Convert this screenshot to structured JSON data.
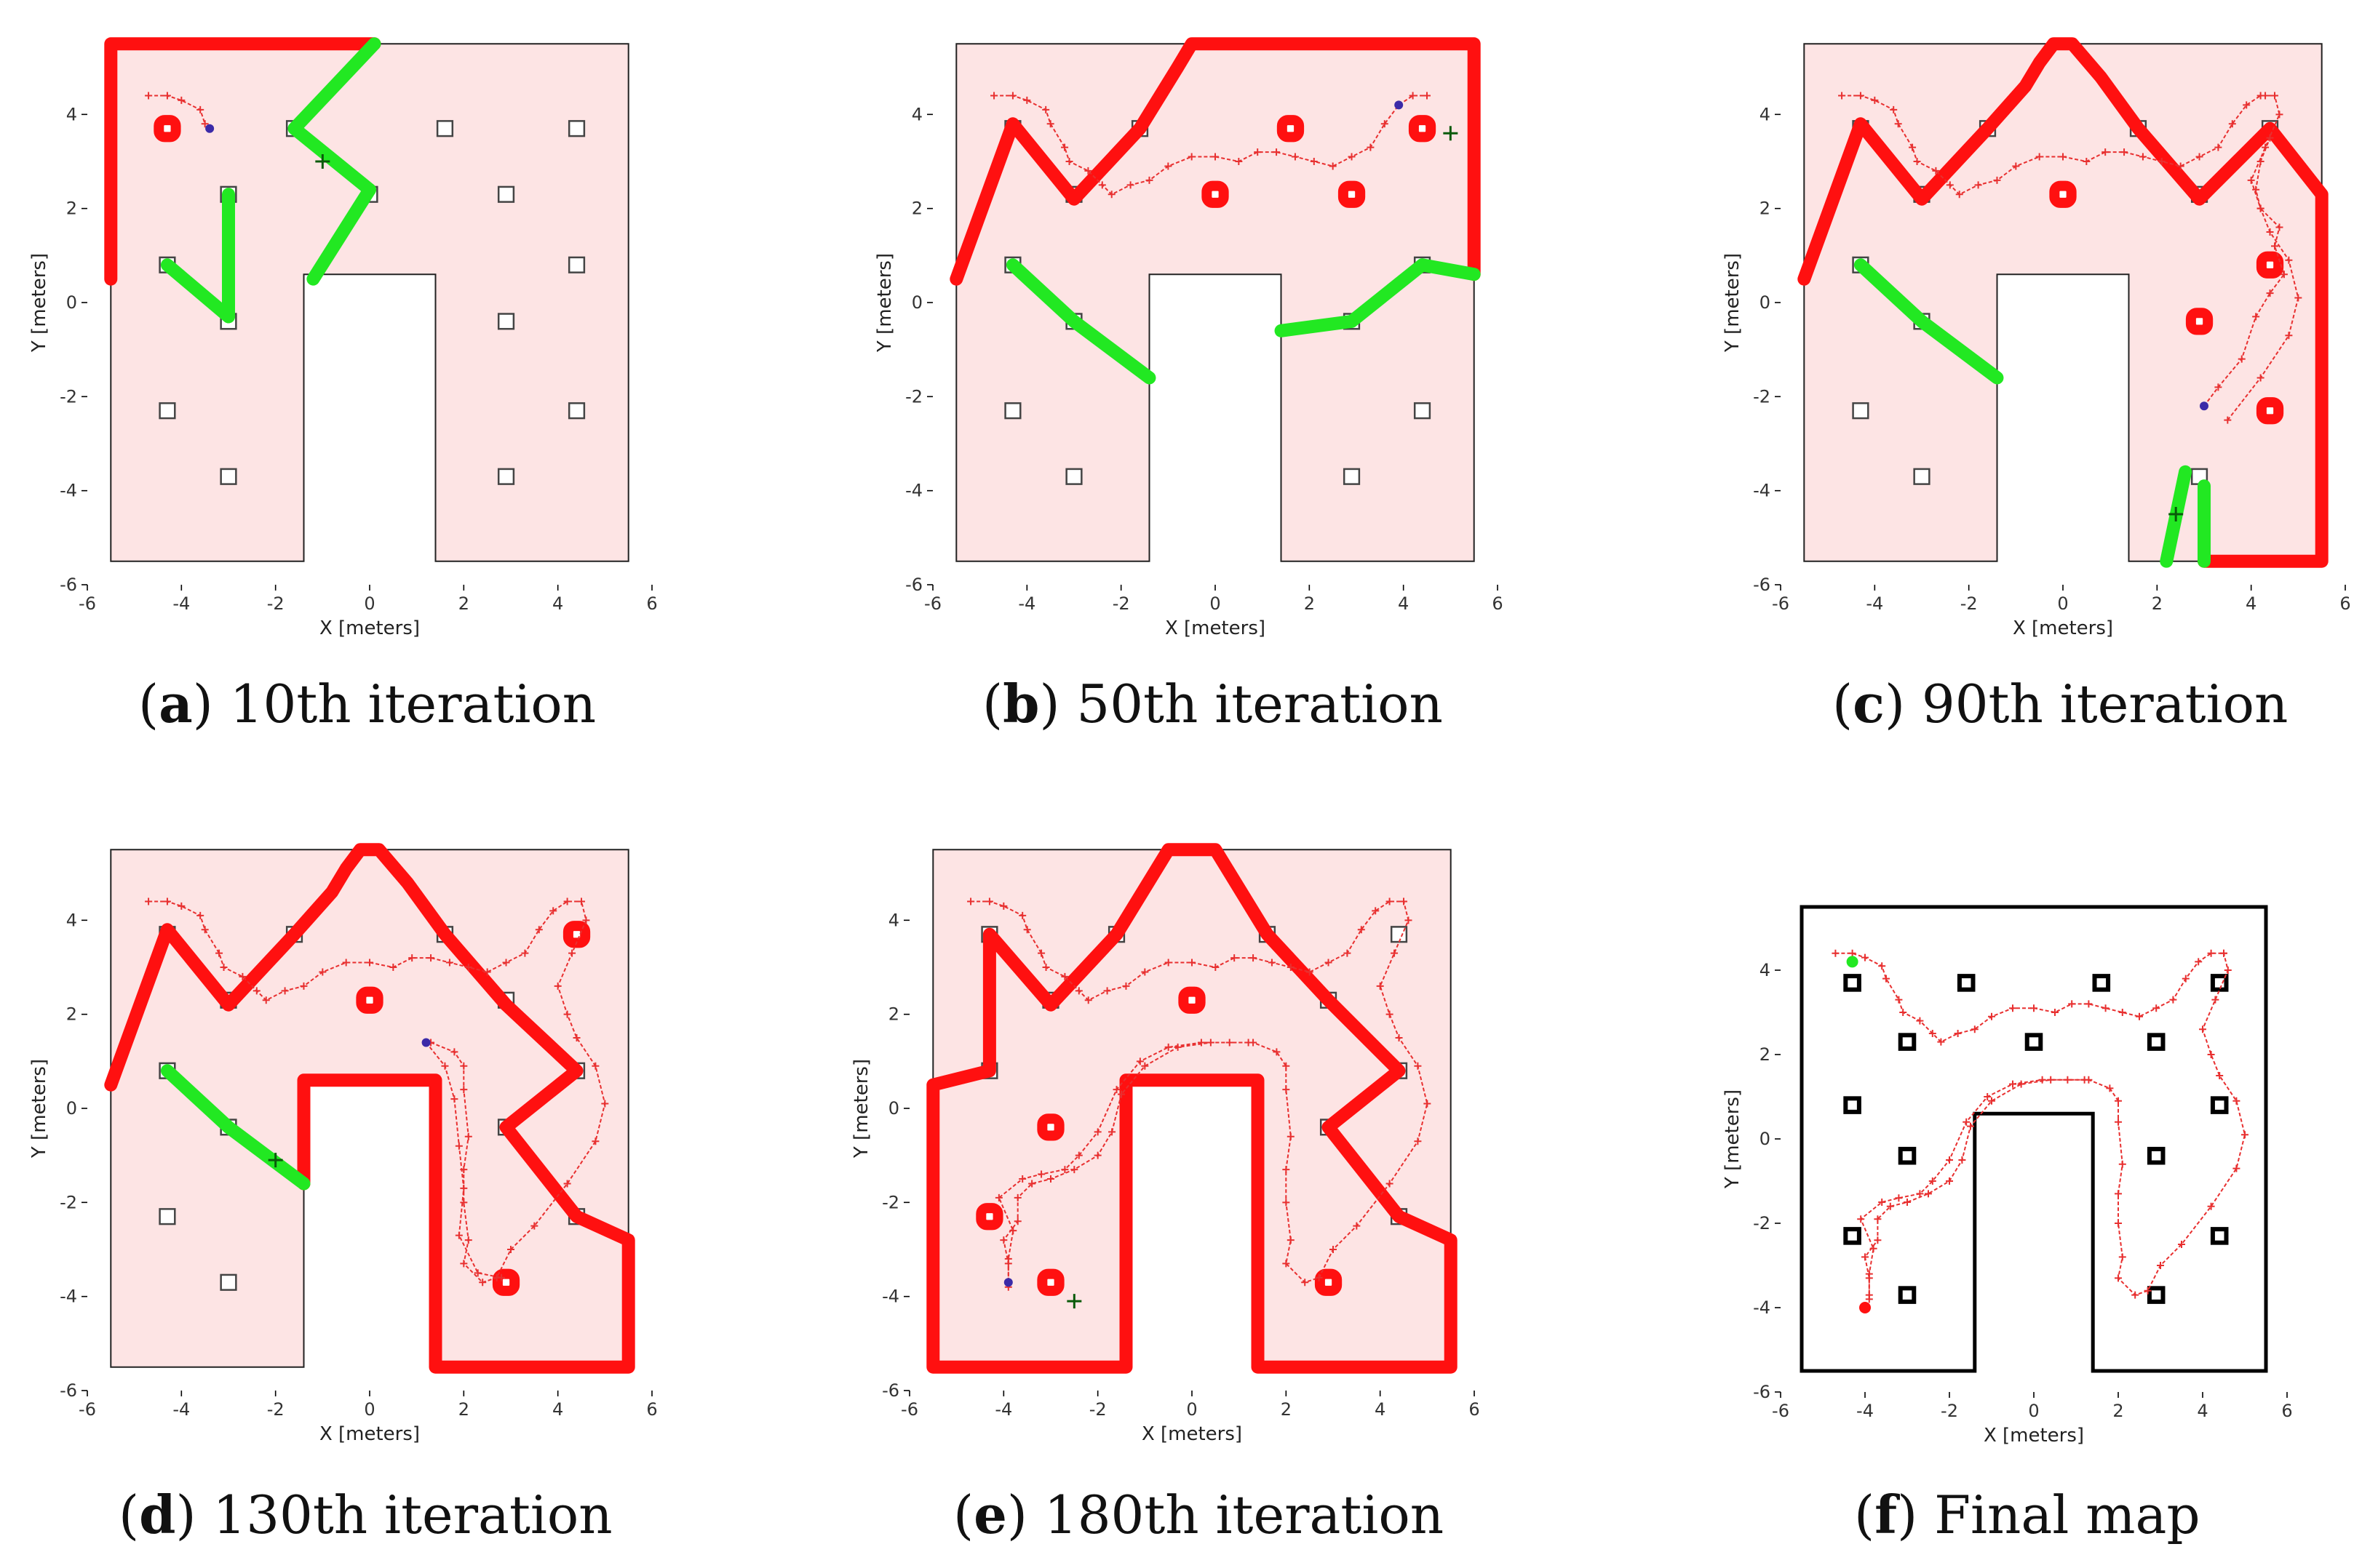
{
  "figure": {
    "panels": [
      {
        "letter": "a",
        "caption": "10th iteration"
      },
      {
        "letter": "b",
        "caption": "50th iteration"
      },
      {
        "letter": "c",
        "caption": "90th iteration"
      },
      {
        "letter": "d",
        "caption": "130th iteration"
      },
      {
        "letter": "e",
        "caption": "180th iteration"
      },
      {
        "letter": "f",
        "caption": "Final map"
      }
    ]
  },
  "chart_data": [
    {
      "type": "scatter",
      "panel": "a",
      "title": "10th iteration",
      "xlabel": "X [meters]",
      "ylabel": "Y [meters]",
      "xlim": [
        -6,
        6
      ],
      "ylim": [
        -6,
        6
      ],
      "xticks": [
        -6,
        -4,
        -2,
        0,
        2,
        4,
        6
      ],
      "yticks": [
        -6,
        -4,
        -2,
        0,
        2,
        4
      ],
      "frontier": [
        [
          -5.5,
          0.5
        ],
        [
          -5.5,
          5.5
        ],
        [
          0.1,
          5.5
        ],
        [
          -1.7,
          3.7
        ],
        [
          -1.7,
          3.6
        ],
        [
          -1.0,
          3.0
        ],
        [
          0,
          2.5
        ],
        [
          0,
          2.3
        ],
        [
          -1.1,
          0.5
        ],
        [
          -1.4,
          0.5
        ],
        [
          -2.9,
          -0.2
        ],
        [
          -2.8,
          2.3
        ],
        [
          -3.2,
          2.3
        ],
        [
          -3.0,
          -0.3
        ],
        [
          -4.2,
          0.9
        ],
        [
          -4.5,
          0.9
        ],
        [
          -5.5,
          0.5
        ]
      ],
      "robot": [
        -3.4,
        3.7
      ],
      "goal": [
        -1.0,
        3.0
      ]
    },
    {
      "type": "scatter",
      "panel": "b",
      "title": "50th iteration",
      "xlabel": "X [meters]",
      "ylabel": "Y [meters]",
      "xlim": [
        -6,
        6
      ],
      "ylim": [
        -6,
        6
      ],
      "xticks": [
        -6,
        -4,
        -2,
        0,
        2,
        4,
        6
      ],
      "yticks": [
        -6,
        -4,
        -2,
        0,
        2,
        4
      ],
      "robot": [
        3.9,
        4.2
      ],
      "goal": [
        5.0,
        3.6
      ]
    },
    {
      "type": "scatter",
      "panel": "c",
      "title": "90th iteration",
      "xlabel": "X [meters]",
      "ylabel": "Y [meters]",
      "xlim": [
        -6,
        6
      ],
      "ylim": [
        -6,
        6
      ],
      "xticks": [
        -6,
        -4,
        -2,
        0,
        2,
        4,
        6
      ],
      "yticks": [
        -6,
        -4,
        -2,
        0,
        2,
        4
      ],
      "robot": [
        3.0,
        -2.2
      ],
      "goal": [
        2.4,
        -4.5
      ]
    },
    {
      "type": "scatter",
      "panel": "d",
      "title": "130th iteration",
      "xlabel": "X [meters]",
      "ylabel": "Y [meters]",
      "xlim": [
        -6,
        6
      ],
      "ylim": [
        -6,
        6
      ],
      "xticks": [
        -6,
        -4,
        -2,
        0,
        2,
        4,
        6
      ],
      "yticks": [
        -6,
        -4,
        -2,
        0,
        2,
        4
      ],
      "robot": [
        1.2,
        1.4
      ],
      "goal": [
        -2.0,
        -1.1
      ]
    },
    {
      "type": "scatter",
      "panel": "e",
      "title": "180th iteration",
      "xlabel": "X [meters]",
      "ylabel": "Y [meters]",
      "xlim": [
        -6,
        6
      ],
      "ylim": [
        -6,
        6
      ],
      "xticks": [
        -6,
        -4,
        -2,
        0,
        2,
        4,
        6
      ],
      "yticks": [
        -6,
        -4,
        -2,
        0,
        2,
        4
      ],
      "robot": [
        -3.9,
        -3.7
      ],
      "goal": [
        -2.5,
        -4.1
      ]
    },
    {
      "type": "scatter",
      "panel": "f",
      "title": "Final map",
      "xlabel": "X [meters]",
      "ylabel": "Y [meters]",
      "xlim": [
        -6,
        6
      ],
      "ylim": [
        -6,
        6
      ],
      "xticks": [
        -6,
        -4,
        -2,
        0,
        2,
        4,
        6
      ],
      "yticks": [
        -6,
        -4,
        -2,
        0,
        2,
        4
      ],
      "start": [
        -4.3,
        4.2
      ],
      "end": [
        -4.0,
        -4.0
      ]
    }
  ],
  "colors": {
    "frontier": "#ff1010",
    "green": "#22e822",
    "room": "#fde4e4",
    "trajectory": "#e83030",
    "robot": "#3b2aa8"
  }
}
